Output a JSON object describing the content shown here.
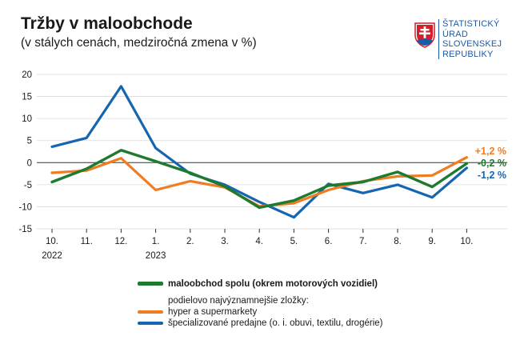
{
  "header": {
    "title": "Tržby v maloobchode",
    "subtitle": "(v stálych cenách, medziročná zmena v %)"
  },
  "logo": {
    "lines": [
      "ŠTATISTICKÝ",
      "ÚRAD",
      "SLOVENSKEJ",
      "REPUBLIKY"
    ],
    "icon": "slovak-coat-of-arms-icon"
  },
  "legend": {
    "components_note": "podielovo najvýznamnejšie zložky:"
  },
  "chart_data": {
    "type": "line",
    "categories": [
      "10.",
      "11.",
      "12.",
      "1.",
      "2.",
      "3.",
      "4.",
      "5.",
      "6.",
      "7.",
      "8.",
      "9.",
      "10."
    ],
    "year_labels": [
      {
        "index": 0,
        "label": "2022"
      },
      {
        "index": 3,
        "label": "2023"
      }
    ],
    "ylim": [
      -15,
      20
    ],
    "yticks": [
      -15,
      -10,
      -5,
      0,
      5,
      10,
      15,
      20
    ],
    "grid": true,
    "series": [
      {
        "name": "maloobchod spolu (okrem motorových vozidiel)",
        "color": "#1e7a2e",
        "bold": true,
        "values": [
          -4.4,
          -1.4,
          2.8,
          0.3,
          -2.3,
          -5.4,
          -10.2,
          -8.6,
          -5.2,
          -4.4,
          -2.1,
          -5.5,
          -0.2
        ],
        "end_label": "-0,2 %"
      },
      {
        "name": "hyper a supermarkety",
        "color": "#f07c22",
        "bold": false,
        "values": [
          -2.3,
          -1.8,
          1.0,
          -6.2,
          -4.2,
          -5.6,
          -9.9,
          -9.2,
          -6.2,
          -4.2,
          -3.1,
          -2.9,
          1.2
        ],
        "end_label": "+1,2 %"
      },
      {
        "name": "špecializované predajne (o. i. obuvi, textilu, drogérie)",
        "color": "#1565b0",
        "bold": false,
        "values": [
          3.6,
          5.6,
          17.3,
          3.3,
          -2.5,
          -5.0,
          -8.9,
          -12.4,
          -4.8,
          -6.9,
          -5.0,
          -7.9,
          -1.2
        ],
        "end_label": "-1,2 %"
      }
    ]
  }
}
